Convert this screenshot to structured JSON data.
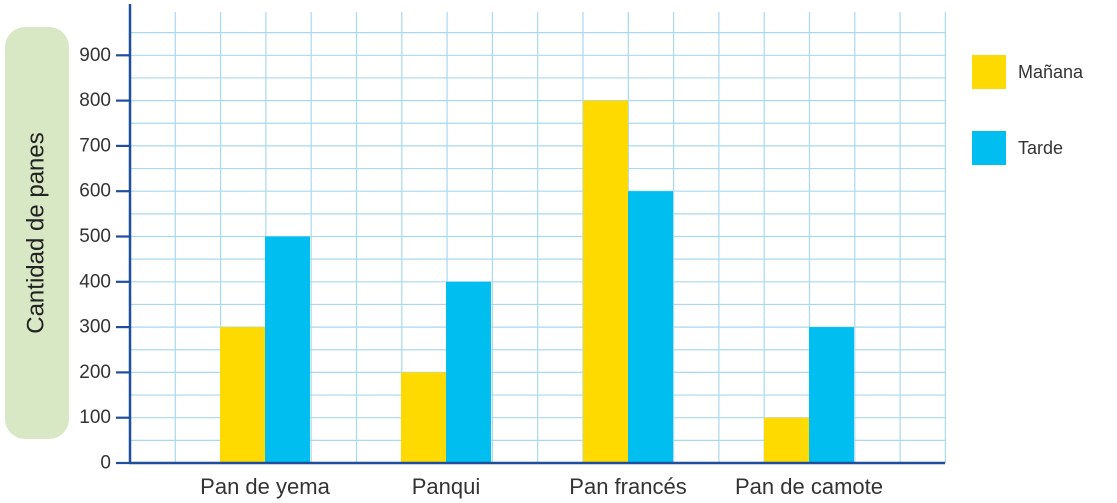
{
  "chart_data": {
    "type": "bar",
    "title": "",
    "xlabel": "",
    "ylabel": "Cantidad de panes",
    "categories": [
      "Pan de yema",
      "Panqui",
      "Pan francés",
      "Pan de camote"
    ],
    "series": [
      {
        "name": "Mañana",
        "color": "#FFDA00",
        "values": [
          300,
          200,
          800,
          100
        ]
      },
      {
        "name": "Tarde",
        "color": "#00BEEF",
        "values": [
          500,
          400,
          600,
          300
        ]
      }
    ],
    "ylim": [
      0,
      900
    ],
    "yticks": [
      "0",
      "100",
      "200",
      "300",
      "400",
      "500",
      "600",
      "700",
      "800",
      "900"
    ],
    "grid": true,
    "legend_position": "right",
    "colors": {
      "axis": "#1F4E9C",
      "grid": "#A9D9F2",
      "ylabel_bg": "#D9E8C4"
    }
  }
}
